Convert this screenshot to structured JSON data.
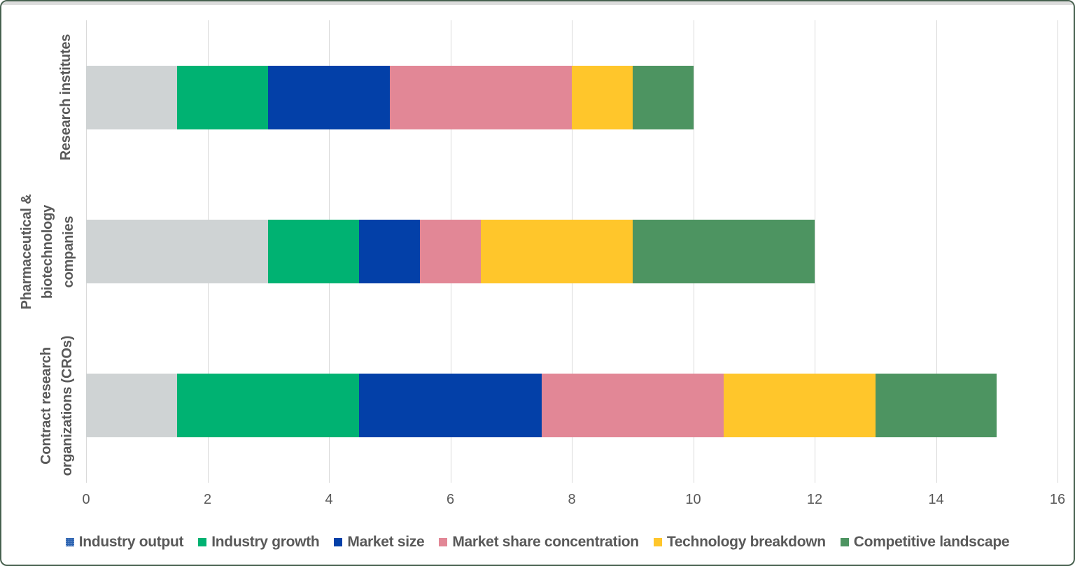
{
  "frame": {
    "background_color": "#ffffff",
    "border_color": "#47614f",
    "top_strip_color": "#dcdcdc",
    "gridline_color": "#d9d9d9",
    "axis_text_color": "#595959",
    "label_text_color": "#595959"
  },
  "chart_data": {
    "type": "bar",
    "orientation": "horizontal",
    "stacked": true,
    "title": "",
    "xlabel": "",
    "ylabel": "",
    "xlim": [
      0,
      16
    ],
    "x_ticks": [
      0,
      2,
      4,
      6,
      8,
      10,
      12,
      14,
      16
    ],
    "grid": "vertical",
    "legend_position": "bottom",
    "categories": [
      {
        "name": "Research institutes",
        "label_lines": "Research institutes",
        "total": 10
      },
      {
        "name": "Pharmaceutical & biotechnology companies",
        "label_lines": "Pharmaceutical &\nbiotechnology\ncompanies",
        "total": 12
      },
      {
        "name": "Contract research organizations (CROs)",
        "label_lines": "Contract research\norganizations (CROs)",
        "total": 15
      }
    ],
    "series": [
      {
        "name": "Industry output",
        "bar_color": "#CFD3D4",
        "legend_swatch_color": "#2E64B1",
        "legend_swatch_patterned": true,
        "values": [
          1.5,
          3,
          1.5
        ]
      },
      {
        "name": "Industry growth",
        "bar_color": "#00B272",
        "legend_swatch_color": "#00B272",
        "legend_swatch_patterned": false,
        "values": [
          1.5,
          1.5,
          3
        ]
      },
      {
        "name": "Market size",
        "bar_color": "#0340A8",
        "legend_swatch_color": "#0340A8",
        "legend_swatch_patterned": false,
        "values": [
          2,
          1,
          3
        ]
      },
      {
        "name": "Market share concentration",
        "bar_color": "#E28796",
        "legend_swatch_color": "#E28796",
        "legend_swatch_patterned": false,
        "values": [
          3,
          1,
          3
        ]
      },
      {
        "name": "Technology breakdown",
        "bar_color": "#FFC62B",
        "legend_swatch_color": "#FFC62B",
        "legend_swatch_patterned": false,
        "values": [
          1,
          2.5,
          2.5
        ]
      },
      {
        "name": "Competitive landscape",
        "bar_color": "#4D9461",
        "legend_swatch_color": "#4D9461",
        "legend_swatch_patterned": false,
        "values": [
          1,
          3,
          2
        ]
      }
    ]
  }
}
